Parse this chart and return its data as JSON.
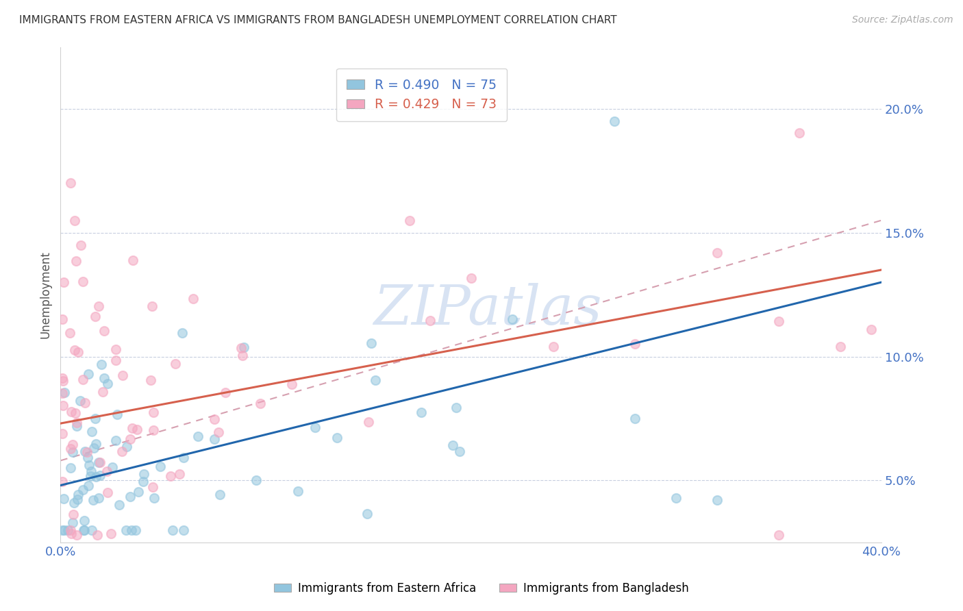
{
  "title": "IMMIGRANTS FROM EASTERN AFRICA VS IMMIGRANTS FROM BANGLADESH UNEMPLOYMENT CORRELATION CHART",
  "source": "Source: ZipAtlas.com",
  "ylabel": "Unemployment",
  "y_ticks": [
    0.05,
    0.1,
    0.15,
    0.2
  ],
  "y_tick_labels": [
    "5.0%",
    "10.0%",
    "15.0%",
    "20.0%"
  ],
  "xlim": [
    0.0,
    0.4
  ],
  "ylim": [
    0.025,
    0.225
  ],
  "R_blue": 0.49,
  "N_blue": 75,
  "R_pink": 0.429,
  "N_pink": 73,
  "color_blue": "#92c5de",
  "color_pink": "#f4a6c0",
  "trend_blue": "#2166ac",
  "trend_pink": "#d6604d",
  "trend_dashed_color": "#d6a0b0",
  "watermark_color": "#c8d8ee",
  "blue_trend_start": 0.048,
  "blue_trend_end": 0.13,
  "pink_trend_start": 0.073,
  "pink_trend_end": 0.135,
  "dashed_trend_start": 0.058,
  "dashed_trend_end": 0.155
}
